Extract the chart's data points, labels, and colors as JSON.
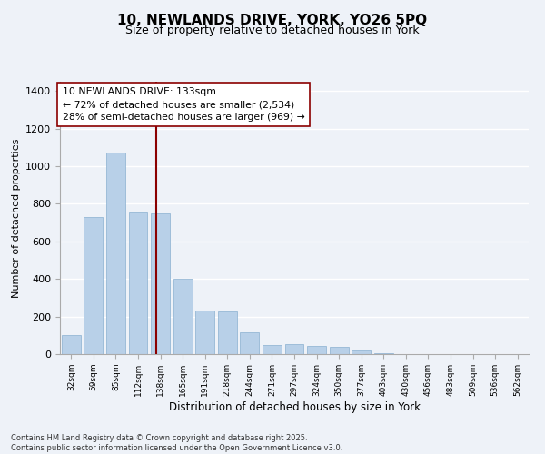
{
  "title_line1": "10, NEWLANDS DRIVE, YORK, YO26 5PQ",
  "title_line2": "Size of property relative to detached houses in York",
  "xlabel": "Distribution of detached houses by size in York",
  "ylabel": "Number of detached properties",
  "categories": [
    "32sqm",
    "59sqm",
    "85sqm",
    "112sqm",
    "138sqm",
    "165sqm",
    "191sqm",
    "218sqm",
    "244sqm",
    "271sqm",
    "297sqm",
    "324sqm",
    "350sqm",
    "377sqm",
    "403sqm",
    "430sqm",
    "456sqm",
    "483sqm",
    "509sqm",
    "536sqm",
    "562sqm"
  ],
  "values": [
    100,
    730,
    1075,
    755,
    750,
    400,
    230,
    228,
    118,
    50,
    55,
    45,
    38,
    20,
    5,
    0,
    0,
    0,
    0,
    0,
    0
  ],
  "bar_color": "#b8d0e8",
  "bar_edge_color": "#8ab0d0",
  "vline_x": 3.81,
  "vline_color": "#8b0000",
  "annotation_label": "10 NEWLANDS DRIVE: 133sqm",
  "annotation_line1": "← 72% of detached houses are smaller (2,534)",
  "annotation_line2": "28% of semi-detached houses are larger (969) →",
  "annotation_box_color": "#ffffff",
  "annotation_box_edge": "#8b0000",
  "background_color": "#eef2f8",
  "grid_color": "#ffffff",
  "ylim": [
    0,
    1450
  ],
  "yticks": [
    0,
    200,
    400,
    600,
    800,
    1000,
    1200,
    1400
  ],
  "title_fontsize": 11,
  "subtitle_fontsize": 9,
  "footer_line1": "Contains HM Land Registry data © Crown copyright and database right 2025.",
  "footer_line2": "Contains public sector information licensed under the Open Government Licence v3.0."
}
